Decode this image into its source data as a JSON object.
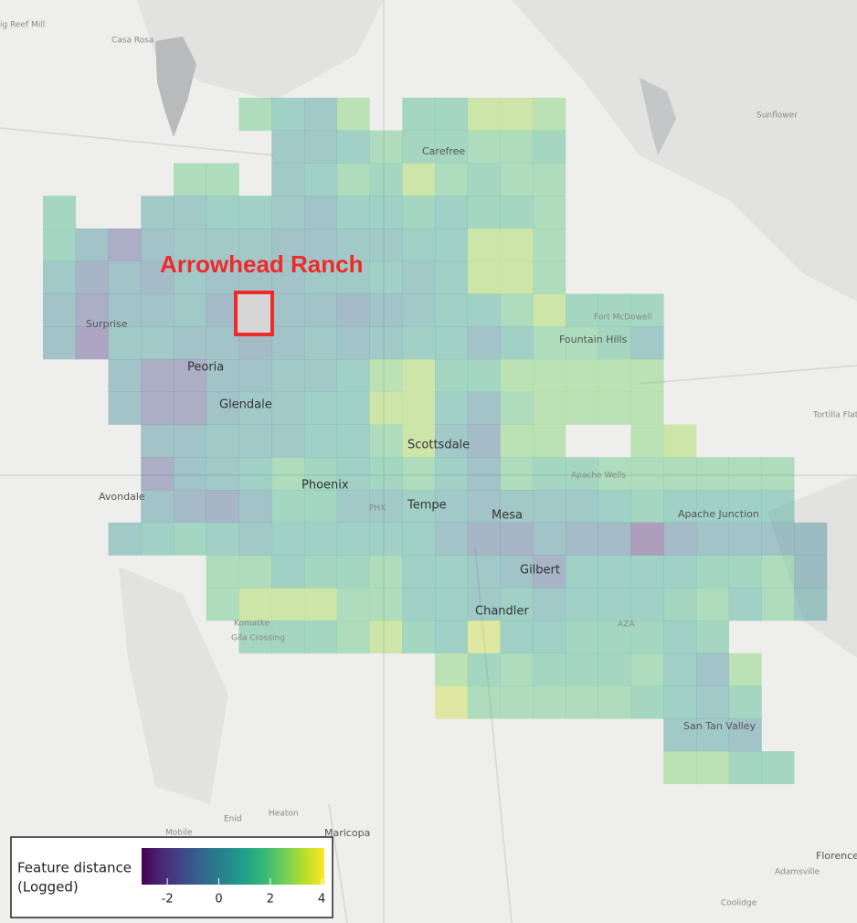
{
  "map": {
    "annotation": "Arrowhead Ranch",
    "colormap": "viridis",
    "clim": [
      -3,
      4.1
    ],
    "places": [
      "ig Reef Mill",
      "Casa Rosa",
      "Carefree",
      "Sunflower",
      "Surprise",
      "Fort McDowell",
      "Fountain Hills",
      "Peoria",
      "Glendale",
      "Tortilla Flat",
      "Scottsdale",
      "Apache Wells",
      "Phoenix",
      "Avondale",
      "PHX",
      "Tempe",
      "Mesa",
      "Apache Junction",
      "Gilbert",
      "Chandler",
      "Komatke",
      "Gila Crossing",
      "AZA",
      "San Tan Valley",
      "Enid",
      "Heaton",
      "Mobile",
      "Maricopa",
      "Florence",
      "Adamsville",
      "Coolidge"
    ],
    "grid": [
      [
        null,
        null,
        null,
        null,
        null,
        null,
        2,
        1,
        0.5,
        2.5,
        null,
        1.5,
        1.5,
        3,
        3,
        2.5,
        null,
        null,
        null,
        null,
        null,
        null,
        null,
        null
      ],
      [
        null,
        null,
        null,
        null,
        null,
        null,
        null,
        0.5,
        0.5,
        1,
        2,
        1.5,
        1.5,
        2,
        2,
        1.5,
        null,
        null,
        null,
        null,
        null,
        null,
        null,
        null
      ],
      [
        null,
        null,
        null,
        null,
        2,
        2,
        null,
        0.5,
        1,
        2,
        1.5,
        3,
        2,
        1.5,
        2,
        2,
        null,
        null,
        null,
        null,
        null,
        null,
        null,
        null
      ],
      [
        1.5,
        null,
        null,
        0.5,
        0.5,
        1,
        1,
        0.5,
        0,
        1,
        1,
        1.5,
        1,
        1.5,
        1.5,
        2,
        null,
        null,
        null,
        null,
        null,
        null,
        null,
        null
      ],
      [
        1.5,
        0,
        -1.5,
        0,
        0.5,
        0.5,
        0.5,
        0,
        0,
        0.5,
        0.5,
        1,
        1,
        3,
        3,
        2,
        null,
        null,
        null,
        null,
        null,
        null,
        null,
        null
      ],
      [
        0.5,
        -1,
        0,
        -0.5,
        0.5,
        0,
        0,
        0,
        0.5,
        0.5,
        1,
        0.5,
        1,
        3,
        3,
        2,
        null,
        null,
        null,
        null,
        null,
        null,
        null,
        null
      ],
      [
        0,
        -1.5,
        0,
        0,
        0.5,
        -0.5,
        null,
        0,
        0,
        -0.5,
        0,
        0.5,
        1,
        1,
        2,
        3,
        1.5,
        1.5,
        1.5,
        null,
        null,
        null,
        null,
        null
      ],
      [
        0,
        -2,
        0.5,
        0.5,
        0,
        0,
        -0.5,
        0,
        0.5,
        0,
        0.5,
        1,
        1,
        0,
        1,
        2,
        2,
        1.5,
        0.5,
        null,
        null,
        null,
        null,
        null
      ],
      [
        null,
        null,
        0,
        -1.5,
        -1.5,
        0,
        0,
        0.5,
        0.5,
        1,
        2.5,
        3,
        1.5,
        1.5,
        2.5,
        2.5,
        2.5,
        2.5,
        2.5,
        null,
        null,
        null,
        null,
        null
      ],
      [
        null,
        null,
        0,
        -1.5,
        -1.5,
        0,
        0.5,
        0.5,
        1,
        1,
        3,
        3,
        1,
        0,
        2,
        2.5,
        2.5,
        2.5,
        2.5,
        null,
        null,
        null,
        null,
        null
      ],
      [
        null,
        null,
        null,
        0,
        0,
        0.5,
        0.5,
        0.5,
        1,
        1,
        2,
        3,
        0.5,
        -0.5,
        2.5,
        2.5,
        null,
        null,
        2.5,
        3,
        null,
        null,
        null,
        null
      ],
      [
        null,
        null,
        null,
        -1.5,
        0,
        0.5,
        1,
        2,
        1.5,
        1,
        1.5,
        2,
        1,
        0,
        2,
        1.5,
        1.5,
        2,
        2,
        2,
        2,
        2,
        2,
        null
      ],
      [
        null,
        null,
        null,
        0,
        -0.5,
        -1,
        0,
        1.5,
        1.5,
        0.5,
        0.5,
        1,
        0.5,
        0,
        0.5,
        0.5,
        0.5,
        1,
        1.5,
        1,
        1,
        1,
        1,
        null
      ],
      [
        null,
        null,
        0.5,
        1,
        1.5,
        1,
        0.5,
        1,
        1,
        1,
        1,
        1,
        0,
        -1,
        -1,
        0,
        -0.5,
        -0.5,
        -2.5,
        -0.5,
        0,
        0,
        0,
        0
      ],
      [
        null,
        null,
        null,
        null,
        null,
        2,
        2,
        1,
        1.5,
        1.5,
        2,
        1,
        1,
        0.5,
        0,
        -1,
        1,
        1,
        1,
        1,
        1.5,
        1.5,
        2,
        0
      ],
      [
        null,
        null,
        null,
        null,
        null,
        2,
        3,
        3,
        3,
        2,
        2,
        1,
        1,
        0.5,
        1,
        0.5,
        1,
        1,
        1,
        1.5,
        2,
        1,
        2,
        0.5
      ],
      [
        null,
        null,
        null,
        null,
        null,
        null,
        1.5,
        1.5,
        1.5,
        2,
        3,
        1.5,
        1,
        3.5,
        1,
        1,
        1.5,
        1.5,
        1.5,
        1,
        1.5,
        null,
        null,
        null
      ],
      [
        null,
        null,
        null,
        null,
        null,
        null,
        null,
        null,
        null,
        null,
        null,
        null,
        2.5,
        1.5,
        2,
        1.5,
        1.5,
        1.5,
        2,
        1,
        0,
        2.5,
        null,
        null
      ],
      [
        null,
        null,
        null,
        null,
        null,
        null,
        null,
        null,
        null,
        null,
        null,
        null,
        3.5,
        2,
        2,
        2,
        2,
        2,
        1.5,
        1,
        0.5,
        1.5,
        null,
        null
      ],
      [
        null,
        null,
        null,
        null,
        null,
        null,
        null,
        null,
        null,
        null,
        null,
        null,
        null,
        null,
        null,
        null,
        null,
        null,
        null,
        0.5,
        0.5,
        0,
        null,
        null
      ],
      [
        null,
        null,
        null,
        null,
        null,
        null,
        null,
        null,
        null,
        null,
        null,
        null,
        null,
        null,
        null,
        null,
        null,
        null,
        null,
        2.5,
        2.5,
        1.5,
        1.5,
        null
      ]
    ],
    "legend": {
      "title": [
        "Feature distance",
        "(Logged)"
      ],
      "ticks": [
        -2,
        0,
        2,
        4
      ]
    }
  }
}
